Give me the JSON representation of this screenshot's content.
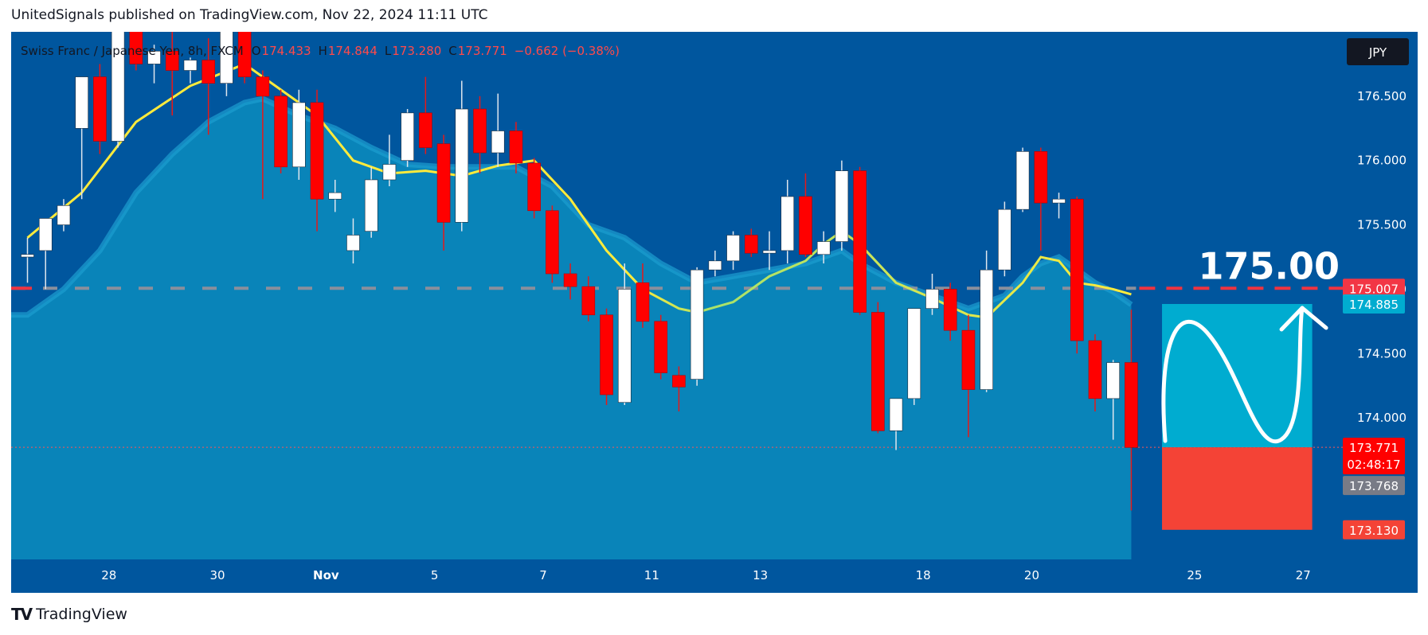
{
  "header": {
    "published": "UnitedSignals published on TradingView.com, Nov 22, 2024 11:11 UTC"
  },
  "legend": {
    "symbol": "Swiss Franc / Japanese Yen, 8h, FXCM",
    "o_label": "O",
    "o_value": "174.433",
    "h_label": "H",
    "h_value": "174.844",
    "l_label": "L",
    "l_value": "173.280",
    "c_label": "C",
    "c_value": "173.771",
    "change": "−0.662 (−0.38%)"
  },
  "currency_badge": "JPY",
  "annotation": {
    "target_text": "175.00"
  },
  "price_labels": {
    "level": "175.007",
    "ma": "174.885",
    "last": "173.771",
    "countdown": "02:48:17",
    "bid": "173.768",
    "stop": "173.130"
  },
  "footer": {
    "logo": "TV",
    "brand": "TradingView"
  },
  "colors": {
    "background": "#00569e",
    "up": "#ffffff",
    "down": "#ff0000",
    "ema_fast": "#ffeb3b",
    "area_fill": "#0a87bb",
    "target_box": "#00acd0",
    "stop_box": "#f44336",
    "level_line": "#ef3340"
  },
  "chart_data": {
    "type": "candlestick",
    "symbol": "Swiss Franc / Japanese Yen",
    "timeframe": "8h",
    "y_ticks": [
      "174.000",
      "174.500",
      "175.000",
      "175.500",
      "176.000",
      "176.500"
    ],
    "ylim": [
      172.9,
      177.0
    ],
    "x_labels": [
      {
        "label": "28",
        "index": 4.5
      },
      {
        "label": "30",
        "index": 10.5
      },
      {
        "label": "Nov",
        "index": 16.5
      },
      {
        "label": "5",
        "index": 22.5
      },
      {
        "label": "7",
        "index": 28.5
      },
      {
        "label": "11",
        "index": 34.5
      },
      {
        "label": "13",
        "index": 40.5
      },
      {
        "label": "18",
        "index": 49.5
      },
      {
        "label": "20",
        "index": 55.5
      },
      {
        "label": "25",
        "index": 64.5
      },
      {
        "label": "27",
        "index": 70.5
      }
    ],
    "candles": [
      {
        "o": 175.25,
        "h": 175.4,
        "l": 175.05,
        "c": 175.27
      },
      {
        "o": 175.3,
        "h": 175.55,
        "l": 175.0,
        "c": 175.55
      },
      {
        "o": 175.5,
        "h": 175.7,
        "l": 175.45,
        "c": 175.65
      },
      {
        "o": 176.25,
        "h": 176.65,
        "l": 175.7,
        "c": 176.65
      },
      {
        "o": 176.65,
        "h": 176.75,
        "l": 176.05,
        "c": 176.15
      },
      {
        "o": 176.15,
        "h": 177.3,
        "l": 176.1,
        "c": 177.3
      },
      {
        "o": 177.2,
        "h": 177.4,
        "l": 176.7,
        "c": 176.75
      },
      {
        "o": 176.75,
        "h": 176.9,
        "l": 176.6,
        "c": 176.85
      },
      {
        "o": 176.85,
        "h": 177.05,
        "l": 176.35,
        "c": 176.7
      },
      {
        "o": 176.7,
        "h": 176.8,
        "l": 176.6,
        "c": 176.78
      },
      {
        "o": 176.78,
        "h": 176.95,
        "l": 176.2,
        "c": 176.6
      },
      {
        "o": 176.6,
        "h": 177.2,
        "l": 176.5,
        "c": 177.15
      },
      {
        "o": 177.1,
        "h": 177.2,
        "l": 176.6,
        "c": 176.65
      },
      {
        "o": 176.65,
        "h": 176.7,
        "l": 175.7,
        "c": 176.5
      },
      {
        "o": 176.5,
        "h": 176.55,
        "l": 175.9,
        "c": 175.95
      },
      {
        "o": 175.95,
        "h": 176.55,
        "l": 175.85,
        "c": 176.45
      },
      {
        "o": 176.45,
        "h": 176.55,
        "l": 175.45,
        "c": 175.7
      },
      {
        "o": 175.7,
        "h": 175.85,
        "l": 175.6,
        "c": 175.75
      },
      {
        "o": 175.3,
        "h": 175.55,
        "l": 175.2,
        "c": 175.42
      },
      {
        "o": 175.45,
        "h": 175.95,
        "l": 175.4,
        "c": 175.85
      },
      {
        "o": 175.85,
        "h": 176.2,
        "l": 175.8,
        "c": 175.97
      },
      {
        "o": 176.0,
        "h": 176.4,
        "l": 175.95,
        "c": 176.37
      },
      {
        "o": 176.37,
        "h": 176.65,
        "l": 176.05,
        "c": 176.1
      },
      {
        "o": 176.13,
        "h": 176.2,
        "l": 175.3,
        "c": 175.52
      },
      {
        "o": 175.52,
        "h": 176.62,
        "l": 175.45,
        "c": 176.4
      },
      {
        "o": 176.4,
        "h": 176.5,
        "l": 175.9,
        "c": 176.06
      },
      {
        "o": 176.06,
        "h": 176.52,
        "l": 175.95,
        "c": 176.23
      },
      {
        "o": 176.23,
        "h": 176.3,
        "l": 175.9,
        "c": 175.98
      },
      {
        "o": 175.98,
        "h": 176.02,
        "l": 175.55,
        "c": 175.61
      },
      {
        "o": 175.61,
        "h": 175.65,
        "l": 175.05,
        "c": 175.12
      },
      {
        "o": 175.12,
        "h": 175.2,
        "l": 174.92,
        "c": 175.02
      },
      {
        "o": 175.02,
        "h": 175.1,
        "l": 174.75,
        "c": 174.8
      },
      {
        "o": 174.8,
        "h": 174.85,
        "l": 174.1,
        "c": 174.18
      },
      {
        "o": 174.12,
        "h": 175.2,
        "l": 174.1,
        "c": 175.0
      },
      {
        "o": 175.05,
        "h": 175.2,
        "l": 174.7,
        "c": 174.75
      },
      {
        "o": 174.75,
        "h": 174.8,
        "l": 174.3,
        "c": 174.35
      },
      {
        "o": 174.33,
        "h": 174.4,
        "l": 174.05,
        "c": 174.24
      },
      {
        "o": 174.3,
        "h": 175.17,
        "l": 174.25,
        "c": 175.15
      },
      {
        "o": 175.15,
        "h": 175.3,
        "l": 175.1,
        "c": 175.22
      },
      {
        "o": 175.22,
        "h": 175.45,
        "l": 175.15,
        "c": 175.42
      },
      {
        "o": 175.42,
        "h": 175.47,
        "l": 175.25,
        "c": 175.28
      },
      {
        "o": 175.28,
        "h": 175.45,
        "l": 175.15,
        "c": 175.3
      },
      {
        "o": 175.3,
        "h": 175.85,
        "l": 175.2,
        "c": 175.72
      },
      {
        "o": 175.72,
        "h": 175.9,
        "l": 175.25,
        "c": 175.27
      },
      {
        "o": 175.27,
        "h": 175.45,
        "l": 175.2,
        "c": 175.37
      },
      {
        "o": 175.37,
        "h": 176.0,
        "l": 175.3,
        "c": 175.92
      },
      {
        "o": 175.92,
        "h": 175.95,
        "l": 174.8,
        "c": 174.82
      },
      {
        "o": 174.82,
        "h": 174.9,
        "l": 173.88,
        "c": 173.9
      },
      {
        "o": 173.9,
        "h": 174.15,
        "l": 173.75,
        "c": 174.15
      },
      {
        "o": 174.15,
        "h": 174.85,
        "l": 174.1,
        "c": 174.85
      },
      {
        "o": 174.85,
        "h": 175.12,
        "l": 174.8,
        "c": 175.0
      },
      {
        "o": 175.0,
        "h": 175.05,
        "l": 174.6,
        "c": 174.68
      },
      {
        "o": 174.68,
        "h": 174.8,
        "l": 173.85,
        "c": 174.22
      },
      {
        "o": 174.22,
        "h": 175.3,
        "l": 174.2,
        "c": 175.15
      },
      {
        "o": 175.15,
        "h": 175.68,
        "l": 175.1,
        "c": 175.62
      },
      {
        "o": 175.62,
        "h": 176.1,
        "l": 175.6,
        "c": 176.07
      },
      {
        "o": 176.07,
        "h": 176.1,
        "l": 175.3,
        "c": 175.67
      },
      {
        "o": 175.67,
        "h": 175.75,
        "l": 175.55,
        "c": 175.7
      },
      {
        "o": 175.7,
        "h": 175.72,
        "l": 174.5,
        "c": 174.6
      },
      {
        "o": 174.6,
        "h": 174.65,
        "l": 174.05,
        "c": 174.15
      },
      {
        "o": 174.15,
        "h": 174.45,
        "l": 173.83,
        "c": 174.43
      },
      {
        "o": 174.43,
        "h": 174.84,
        "l": 173.28,
        "c": 173.77
      }
    ],
    "ema_fast": [
      [
        0,
        175.4
      ],
      [
        3,
        175.75
      ],
      [
        6,
        176.3
      ],
      [
        9,
        176.58
      ],
      [
        12,
        176.75
      ],
      [
        14,
        176.55
      ],
      [
        16,
        176.35
      ],
      [
        18,
        176.0
      ],
      [
        20,
        175.9
      ],
      [
        22,
        175.92
      ],
      [
        24,
        175.88
      ],
      [
        26,
        175.96
      ],
      [
        28,
        176.0
      ],
      [
        30,
        175.7
      ],
      [
        32,
        175.3
      ],
      [
        34,
        175.0
      ],
      [
        36,
        174.85
      ],
      [
        37,
        174.82
      ],
      [
        39,
        174.9
      ],
      [
        41,
        175.1
      ],
      [
        43,
        175.22
      ],
      [
        44,
        175.35
      ],
      [
        45,
        175.45
      ],
      [
        46,
        175.35
      ],
      [
        48,
        175.05
      ],
      [
        50,
        174.93
      ],
      [
        52,
        174.8
      ],
      [
        53,
        174.78
      ],
      [
        55,
        175.05
      ],
      [
        56,
        175.25
      ],
      [
        57,
        175.22
      ],
      [
        58,
        175.05
      ],
      [
        59,
        175.03
      ],
      [
        60,
        175.0
      ],
      [
        61,
        174.96
      ]
    ],
    "ema_slow": [
      [
        0,
        174.8
      ],
      [
        2,
        175.0
      ],
      [
        4,
        175.3
      ],
      [
        6,
        175.75
      ],
      [
        8,
        176.05
      ],
      [
        10,
        176.3
      ],
      [
        12,
        176.45
      ],
      [
        13,
        176.48
      ],
      [
        15,
        176.35
      ],
      [
        17,
        176.25
      ],
      [
        19,
        176.1
      ],
      [
        21,
        175.97
      ],
      [
        23,
        175.95
      ],
      [
        25,
        175.95
      ],
      [
        27,
        175.95
      ],
      [
        29,
        175.8
      ],
      [
        31,
        175.5
      ],
      [
        33,
        175.4
      ],
      [
        35,
        175.2
      ],
      [
        37,
        175.05
      ],
      [
        39,
        175.1
      ],
      [
        41,
        175.15
      ],
      [
        43,
        175.2
      ],
      [
        45,
        175.3
      ],
      [
        46,
        175.2
      ],
      [
        48,
        175.05
      ],
      [
        50,
        174.95
      ],
      [
        52,
        174.85
      ],
      [
        54,
        174.95
      ],
      [
        55,
        175.1
      ],
      [
        56,
        175.2
      ],
      [
        57,
        175.25
      ],
      [
        58,
        175.15
      ],
      [
        59,
        175.05
      ],
      [
        60,
        174.98
      ],
      [
        61,
        174.88
      ]
    ],
    "horizontal_level": 175.007,
    "target_box": {
      "from_index": 62.7,
      "to_index": 71.0,
      "top": 174.885,
      "bottom": 173.771
    },
    "stop_box": {
      "from_index": 62.7,
      "to_index": 71.0,
      "top": 173.771,
      "bottom": 173.13
    }
  }
}
